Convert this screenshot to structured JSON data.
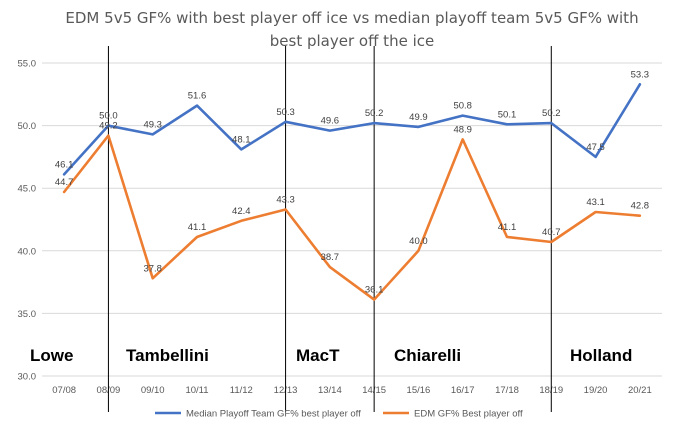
{
  "chart_data": {
    "type": "line",
    "title_lines": [
      "EDM 5v5 GF% with best player off ice vs median playoff team 5v5 GF% with",
      "best player off the ice"
    ],
    "categories": [
      "07/08",
      "08/09",
      "09/10",
      "10/11",
      "11/12",
      "12/13",
      "13/14",
      "14/15",
      "15/16",
      "16/17",
      "17/18",
      "18/19",
      "19/20",
      "20/21"
    ],
    "ylim": [
      30,
      55
    ],
    "yticks": [
      "30.0",
      "35.0",
      "40.0",
      "45.0",
      "50.0",
      "55.0"
    ],
    "grid": true,
    "legend_position": "bottom",
    "series": [
      {
        "name": "Median Playoff Team GF% best player off",
        "color": "#4472C4",
        "values": [
          46.1,
          50.0,
          49.3,
          51.6,
          48.1,
          50.3,
          49.6,
          50.2,
          49.9,
          50.8,
          50.1,
          50.2,
          47.5,
          53.3
        ],
        "labels": [
          "46.1",
          "50.0",
          "49.3",
          "51.6",
          "48.1",
          "50.3",
          "49.6",
          "50.2",
          "49.9",
          "50.8",
          "50.1",
          "50.2",
          "47.5",
          "53.3"
        ]
      },
      {
        "name": "EDM GF% Best player off",
        "color": "#ED7D31",
        "values": [
          44.7,
          49.2,
          37.8,
          41.1,
          42.4,
          43.3,
          38.7,
          36.1,
          40.0,
          48.9,
          41.1,
          40.7,
          43.1,
          42.8
        ],
        "labels": [
          "44.7",
          "49.2",
          "37.8",
          "41.1",
          "42.4",
          "43.3",
          "38.7",
          "36.1",
          "40.0",
          "48.9",
          "41.1",
          "40.7",
          "43.1",
          "42.8"
        ]
      }
    ],
    "eras": [
      {
        "name": "Lowe",
        "start_index": 0
      },
      {
        "name": "Tambellini",
        "start_index": 1
      },
      {
        "name": "MacT",
        "start_index": 5
      },
      {
        "name": "Chiarelli",
        "start_index": 7
      },
      {
        "name": "Holland",
        "start_index": 11
      }
    ]
  }
}
